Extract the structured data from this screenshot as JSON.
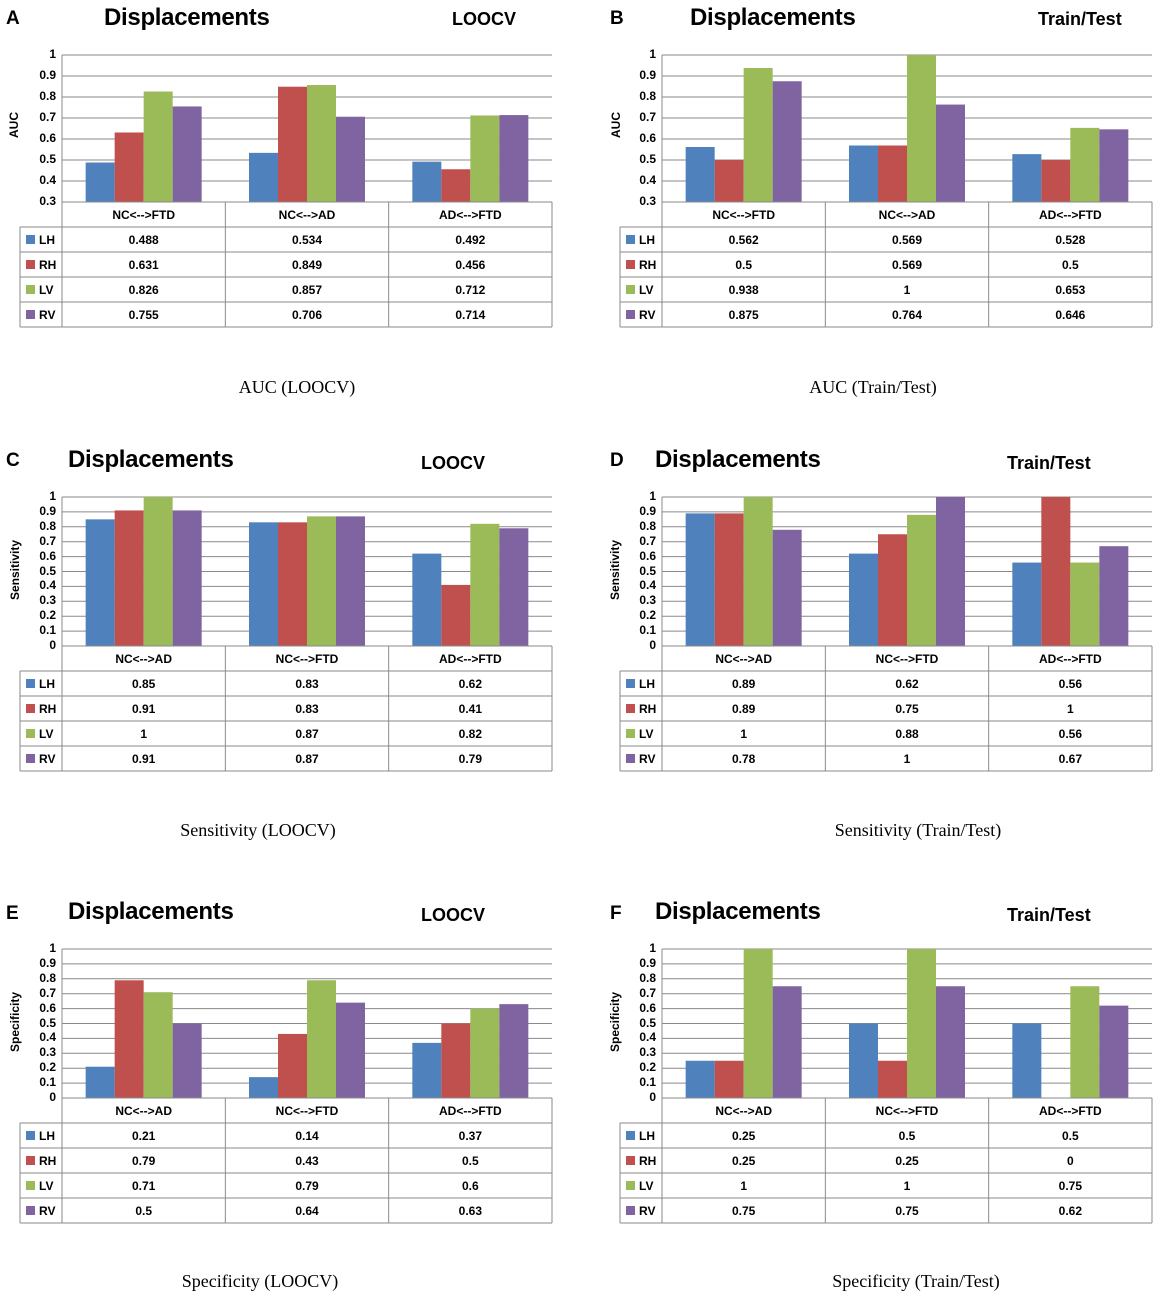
{
  "colors": {
    "LH": "#4f81bd",
    "RH": "#c0504d",
    "LV": "#9bbb59",
    "RV": "#8064a2"
  },
  "series_names": [
    "LH",
    "RH",
    "LV",
    "RV"
  ],
  "chart_data": [
    {
      "panel": "A",
      "type": "bar",
      "title": "Displacements",
      "method": "LOOCV",
      "ylabel": "AUC",
      "caption": "AUC (LOOCV)",
      "ylim": [
        0.3,
        1
      ],
      "yticks": [
        "0.3",
        "0.4",
        "0.5",
        "0.6",
        "0.7",
        "0.8",
        "0.9",
        "1"
      ],
      "categories": [
        "NC<-->FTD",
        "NC<-->AD",
        "AD<-->FTD"
      ],
      "series": [
        {
          "name": "LH",
          "values": [
            0.488,
            0.534,
            0.492
          ],
          "labels": [
            "0.488",
            "0.534",
            "0.492"
          ]
        },
        {
          "name": "RH",
          "values": [
            0.631,
            0.849,
            0.456
          ],
          "labels": [
            "0.631",
            "0.849",
            "0.456"
          ]
        },
        {
          "name": "LV",
          "values": [
            0.826,
            0.857,
            0.712
          ],
          "labels": [
            "0.826",
            "0.857",
            "0.712"
          ]
        },
        {
          "name": "RV",
          "values": [
            0.755,
            0.706,
            0.714
          ],
          "labels": [
            "0.755",
            "0.706",
            "0.714"
          ]
        }
      ]
    },
    {
      "panel": "B",
      "type": "bar",
      "title": "Displacements",
      "method": "Train/Test",
      "ylabel": "AUC",
      "caption": "AUC (Train/Test)",
      "ylim": [
        0.3,
        1
      ],
      "yticks": [
        "0.3",
        "0.4",
        "0.5",
        "0.6",
        "0.7",
        "0.8",
        "0.9",
        "1"
      ],
      "categories": [
        "NC<-->FTD",
        "NC<-->AD",
        "AD<-->FTD"
      ],
      "series": [
        {
          "name": "LH",
          "values": [
            0.562,
            0.569,
            0.528
          ],
          "labels": [
            "0.562",
            "0.569",
            "0.528"
          ]
        },
        {
          "name": "RH",
          "values": [
            0.5,
            0.569,
            0.5
          ],
          "labels": [
            "0.5",
            "0.569",
            "0.5"
          ]
        },
        {
          "name": "LV",
          "values": [
            0.938,
            1,
            0.653
          ],
          "labels": [
            "0.938",
            "1",
            "0.653"
          ]
        },
        {
          "name": "RV",
          "values": [
            0.875,
            0.764,
            0.646
          ],
          "labels": [
            "0.875",
            "0.764",
            "0.646"
          ]
        }
      ]
    },
    {
      "panel": "C",
      "type": "bar",
      "title": "Displacements",
      "method": "LOOCV",
      "ylabel": "Sensitivity",
      "caption": "Sensitivity (LOOCV)",
      "ylim": [
        0,
        1
      ],
      "yticks": [
        "0",
        "0.1",
        "0.2",
        "0.3",
        "0.4",
        "0.5",
        "0.6",
        "0.7",
        "0.8",
        "0.9",
        "1"
      ],
      "categories": [
        "NC<-->AD",
        "NC<-->FTD",
        "AD<-->FTD"
      ],
      "series": [
        {
          "name": "LH",
          "values": [
            0.85,
            0.83,
            0.62
          ],
          "labels": [
            "0.85",
            "0.83",
            "0.62"
          ]
        },
        {
          "name": "RH",
          "values": [
            0.91,
            0.83,
            0.41
          ],
          "labels": [
            "0.91",
            "0.83",
            "0.41"
          ]
        },
        {
          "name": "LV",
          "values": [
            1,
            0.87,
            0.82
          ],
          "labels": [
            "1",
            "0.87",
            "0.82"
          ]
        },
        {
          "name": "RV",
          "values": [
            0.91,
            0.87,
            0.79
          ],
          "labels": [
            "0.91",
            "0.87",
            "0.79"
          ]
        }
      ]
    },
    {
      "panel": "D",
      "type": "bar",
      "title": "Displacements",
      "method": "Train/Test",
      "ylabel": "Sensitivity",
      "caption": "Sensitivity (Train/Test)",
      "ylim": [
        0,
        1
      ],
      "yticks": [
        "0",
        "0.1",
        "0.2",
        "0.3",
        "0.4",
        "0.5",
        "0.6",
        "0.7",
        "0.8",
        "0.9",
        "1"
      ],
      "categories": [
        "NC<-->AD",
        "NC<-->FTD",
        "AD<-->FTD"
      ],
      "series": [
        {
          "name": "LH",
          "values": [
            0.89,
            0.62,
            0.56
          ],
          "labels": [
            "0.89",
            "0.62",
            "0.56"
          ]
        },
        {
          "name": "RH",
          "values": [
            0.89,
            0.75,
            1
          ],
          "labels": [
            "0.89",
            "0.75",
            "1"
          ]
        },
        {
          "name": "LV",
          "values": [
            1,
            0.88,
            0.56
          ],
          "labels": [
            "1",
            "0.88",
            "0.56"
          ]
        },
        {
          "name": "RV",
          "values": [
            0.78,
            1,
            0.67
          ],
          "labels": [
            "0.78",
            "1",
            "0.67"
          ]
        }
      ]
    },
    {
      "panel": "E",
      "type": "bar",
      "title": "Displacements",
      "method": "LOOCV",
      "ylabel": "Specificity",
      "caption": "Specificity (LOOCV)",
      "ylim": [
        0,
        1
      ],
      "yticks": [
        "0",
        "0.1",
        "0.2",
        "0.3",
        "0.4",
        "0.5",
        "0.6",
        "0.7",
        "0.8",
        "0.9",
        "1"
      ],
      "categories": [
        "NC<-->AD",
        "NC<-->FTD",
        "AD<-->FTD"
      ],
      "series": [
        {
          "name": "LH",
          "values": [
            0.21,
            0.14,
            0.37
          ],
          "labels": [
            "0.21",
            "0.14",
            "0.37"
          ]
        },
        {
          "name": "RH",
          "values": [
            0.79,
            0.43,
            0.5
          ],
          "labels": [
            "0.79",
            "0.43",
            "0.5"
          ]
        },
        {
          "name": "LV",
          "values": [
            0.71,
            0.79,
            0.6
          ],
          "labels": [
            "0.71",
            "0.79",
            "0.6"
          ]
        },
        {
          "name": "RV",
          "values": [
            0.5,
            0.64,
            0.63
          ],
          "labels": [
            "0.5",
            "0.64",
            "0.63"
          ]
        }
      ]
    },
    {
      "panel": "F",
      "type": "bar",
      "title": "Displacements",
      "method": "Train/Test",
      "ylabel": "Specificity",
      "caption": "Specificity (Train/Test)",
      "ylim": [
        0,
        1
      ],
      "yticks": [
        "0",
        "0.1",
        "0.2",
        "0.3",
        "0.4",
        "0.5",
        "0.6",
        "0.7",
        "0.8",
        "0.9",
        "1"
      ],
      "categories": [
        "NC<-->AD",
        "NC<-->FTD",
        "AD<-->FTD"
      ],
      "series": [
        {
          "name": "LH",
          "values": [
            0.25,
            0.5,
            0.5
          ],
          "labels": [
            "0.25",
            "0.5",
            "0.5"
          ]
        },
        {
          "name": "RH",
          "values": [
            0.25,
            0.25,
            0
          ],
          "labels": [
            "0.25",
            "0.25",
            "0"
          ]
        },
        {
          "name": "LV",
          "values": [
            1,
            1,
            0.75
          ],
          "labels": [
            "1",
            "1",
            "0.75"
          ]
        },
        {
          "name": "RV",
          "values": [
            0.75,
            0.75,
            0.62
          ],
          "labels": [
            "0.75",
            "0.75",
            "0.62"
          ]
        }
      ]
    }
  ]
}
